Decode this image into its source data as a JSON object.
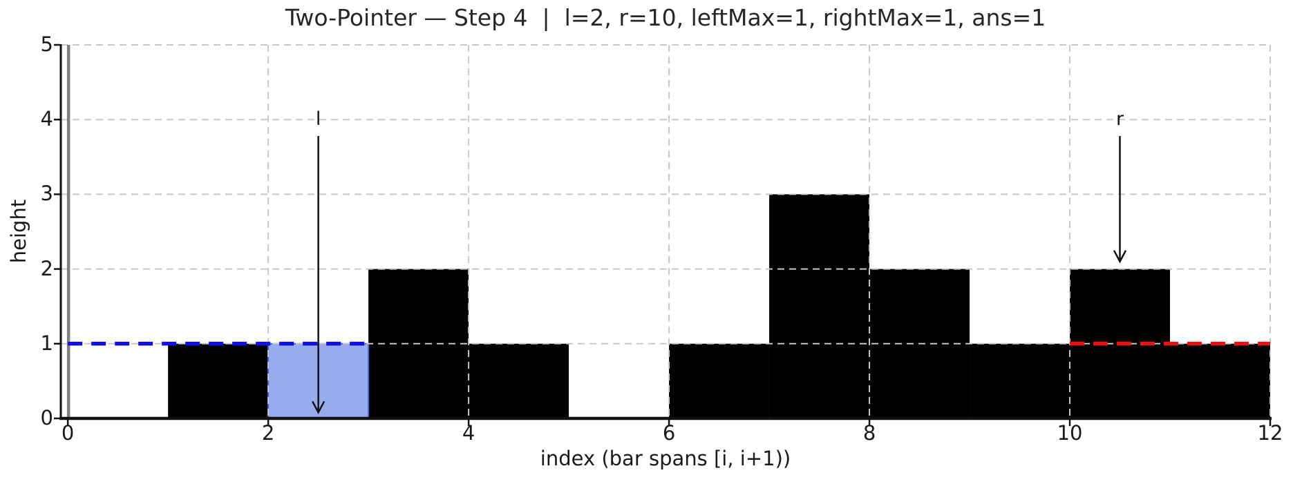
{
  "chart_data": {
    "type": "bar",
    "title": "Two-Pointer — Step 4  |  l=2, r=10, leftMax=1, rightMax=1, ans=1",
    "xlabel": "index (bar spans [i, i+1))",
    "ylabel": "height",
    "categories": [
      0,
      1,
      2,
      3,
      4,
      5,
      6,
      7,
      8,
      9,
      10,
      11
    ],
    "values": [
      0,
      1,
      0,
      2,
      1,
      0,
      1,
      3,
      2,
      1,
      2,
      1
    ],
    "bar_color": "#000000",
    "grid": true,
    "grid_color": "#c8c8c8",
    "xlim": [
      -0.07,
      12.0
    ],
    "ylim": [
      0,
      5
    ],
    "xticks": [
      0,
      2,
      4,
      6,
      8,
      10,
      12
    ],
    "yticks": [
      0,
      1,
      2,
      3,
      4,
      5
    ],
    "highlight_cell": {
      "index": 2,
      "value_from": 0,
      "value_to": 1,
      "fill": "#96acee",
      "edge": "#4169e1"
    },
    "leftmax_line": {
      "y": 1,
      "x_from": 0,
      "x_to": 3,
      "color": "#0f0fee",
      "style": "dashed"
    },
    "rightmax_line": {
      "y": 1,
      "x_from": 10,
      "x_to": 12,
      "color": "#ee1111",
      "style": "dashed"
    },
    "zero_marker_line": {
      "x": 0,
      "color": "#7f7f7f"
    },
    "pointers": [
      {
        "label": "l",
        "x": 2.5,
        "label_y": 4.1,
        "arrow_from_y": 3.78,
        "arrow_tip_y": 0.08
      },
      {
        "label": "r",
        "x": 10.5,
        "label_y": 4.1,
        "arrow_from_y": 3.78,
        "arrow_tip_y": 2.1
      }
    ],
    "state": {
      "step": 4,
      "l": 2,
      "r": 10,
      "leftMax": 1,
      "rightMax": 1,
      "ans": 1
    }
  }
}
